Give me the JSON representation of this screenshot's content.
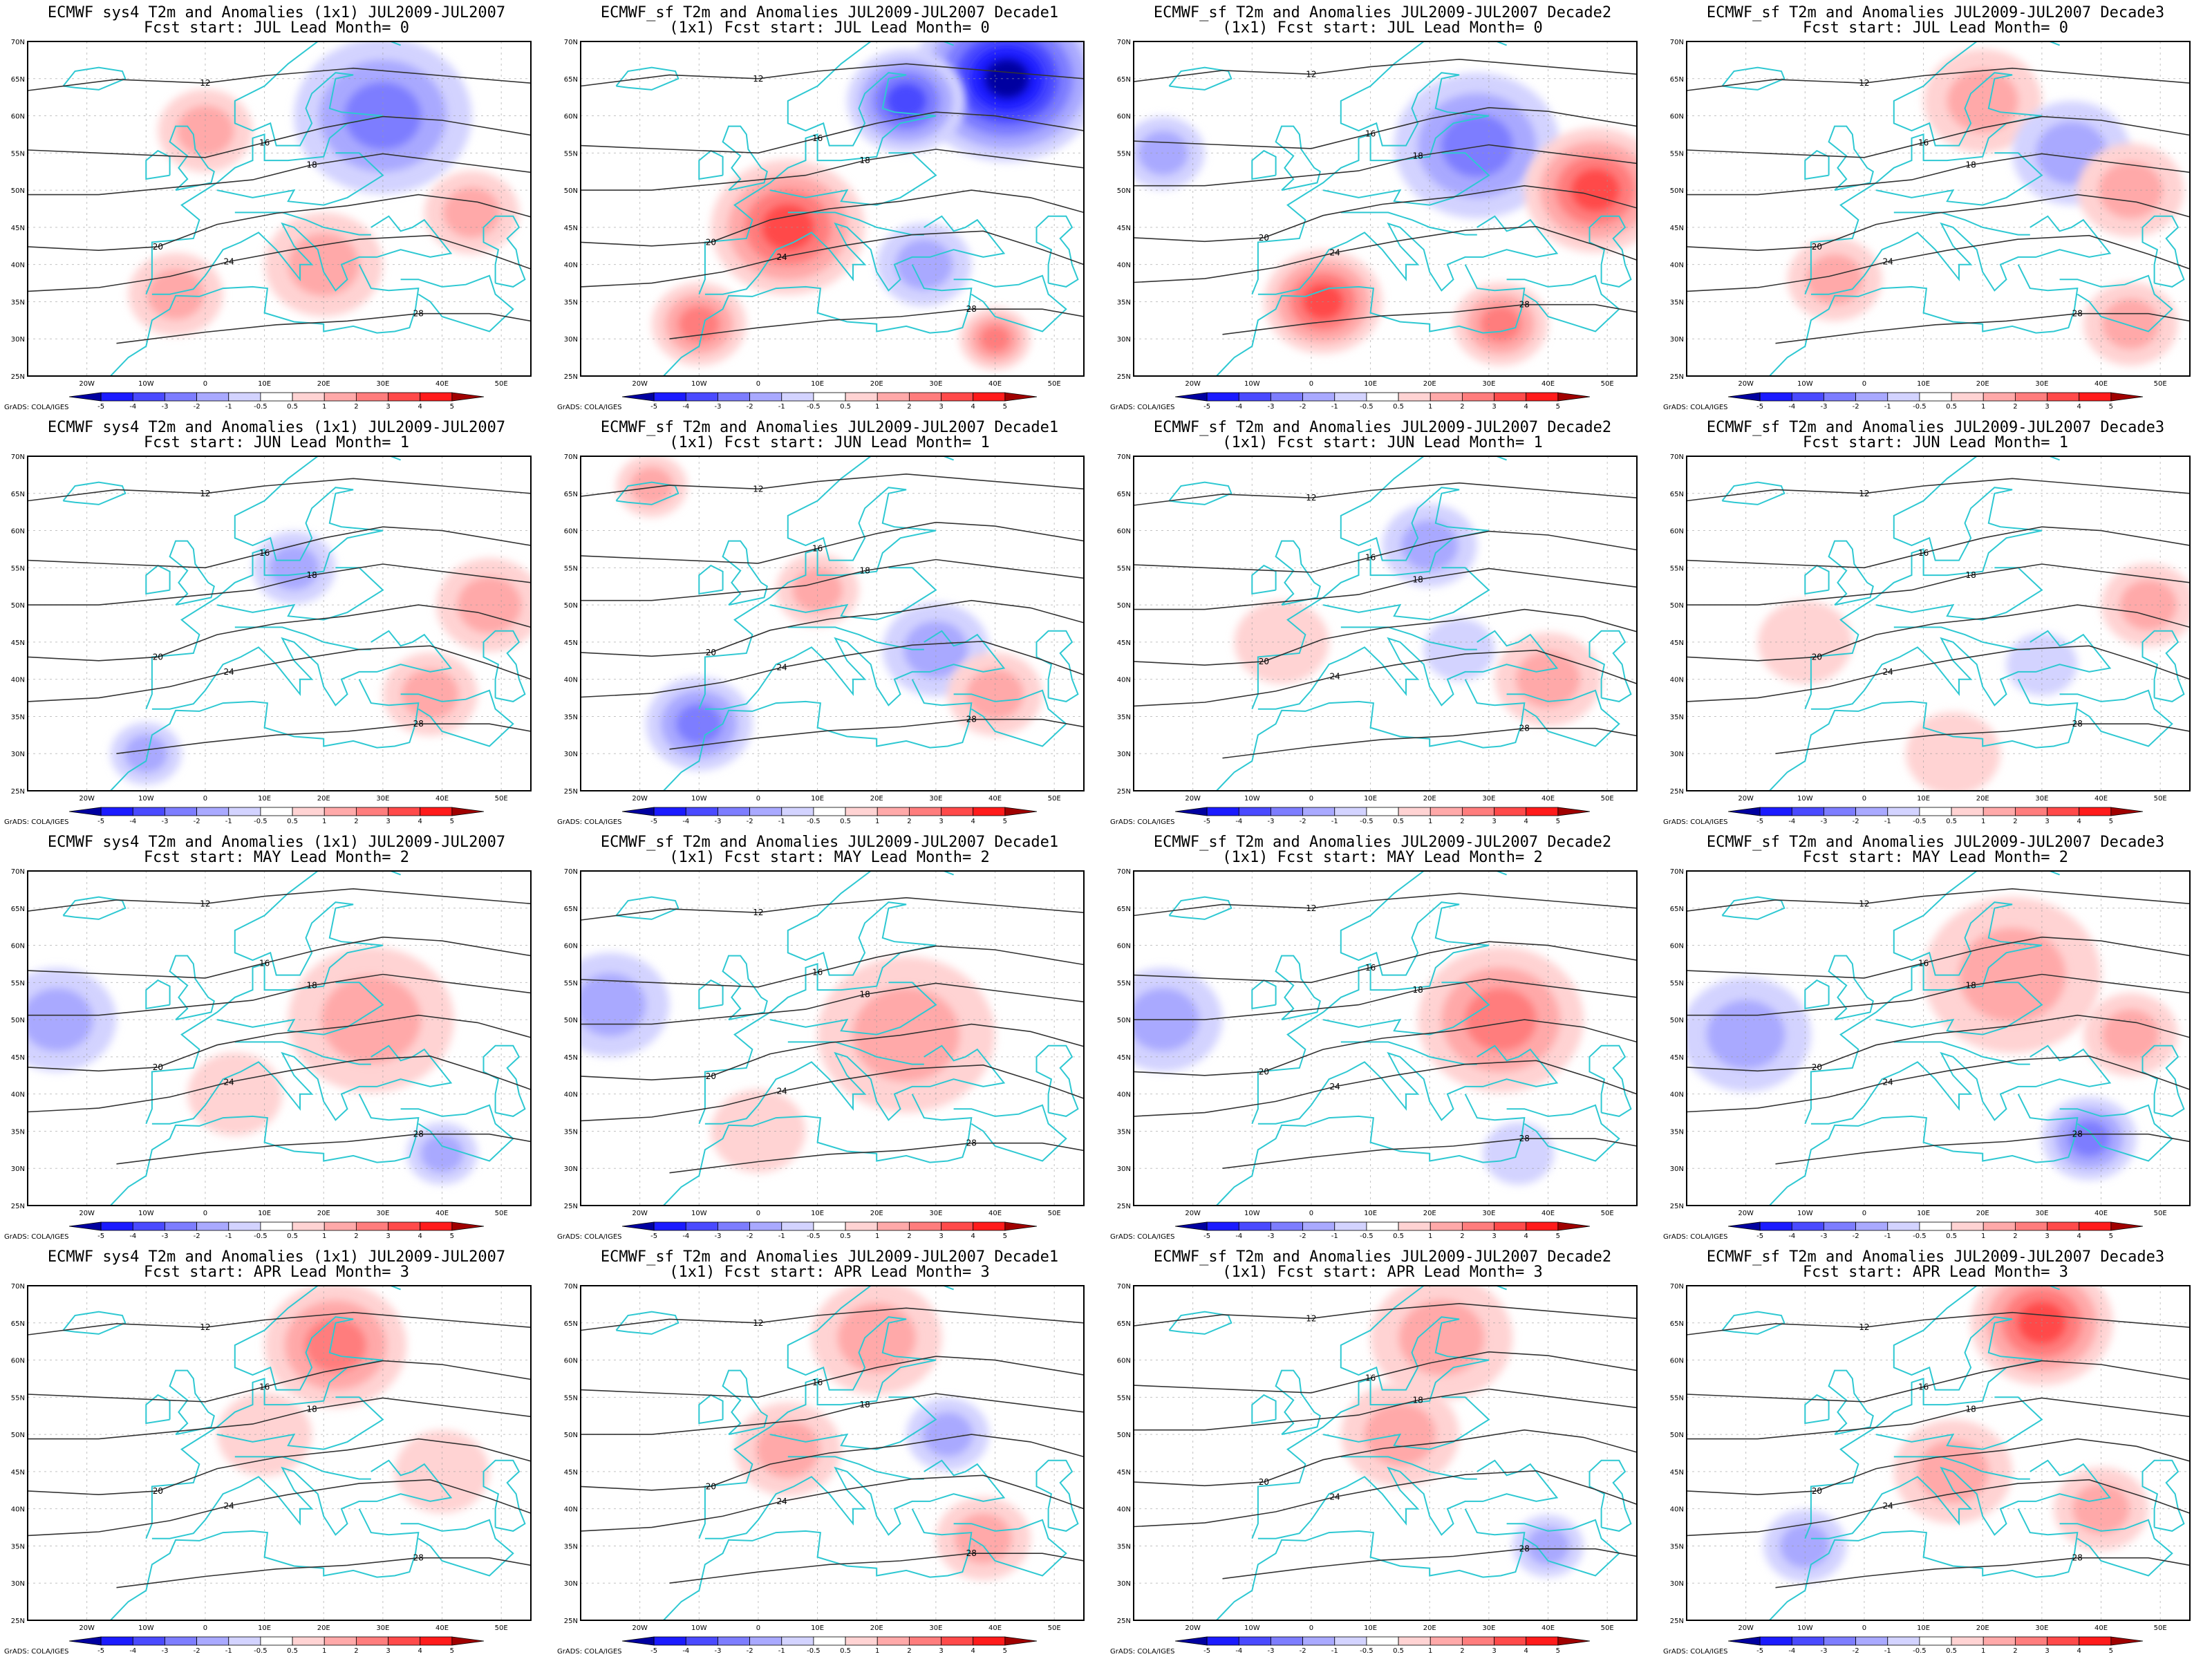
{
  "figure": {
    "credit": "GrADS: COLA/IGES",
    "lat_labels": [
      "25N",
      "30N",
      "35N",
      "40N",
      "45N",
      "50N",
      "55N",
      "60N",
      "65N",
      "70N"
    ],
    "lon_labels": [
      "20W",
      "10W",
      "0",
      "10E",
      "20E",
      "30E",
      "40E",
      "50E"
    ],
    "colorbar_labels": [
      "-5",
      "-4",
      "-3",
      "-2",
      "-1",
      "-0.5",
      "0.5",
      "1",
      "2",
      "3",
      "4",
      "5"
    ],
    "colors": {
      "coast": "#2ec8d2",
      "contour": "#333333",
      "neg": [
        "#0000a0",
        "#1b1bff",
        "#4a4aff",
        "#7d7dff",
        "#a9a9ff",
        "#d3d3ff"
      ],
      "pos": [
        "#ffd3d3",
        "#ffa9a9",
        "#ff7d7d",
        "#ff4a4a",
        "#ff1b1b",
        "#a00000"
      ]
    }
  },
  "panels": [
    {
      "t1": "ECMWF sys4 T2m and Anomalies (1x1) JUL2009-JUL2007",
      "t2": "Fcst start: JUL  Lead Month= 0",
      "anoms": [
        {
          "lon": 30,
          "lat": 60,
          "v": -2.5,
          "r": 15
        },
        {
          "lon": 0,
          "lat": 58,
          "v": 1.3,
          "r": 8
        },
        {
          "lon": 20,
          "lat": 40,
          "v": 1.5,
          "r": 10
        },
        {
          "lon": -5,
          "lat": 36,
          "v": 1.5,
          "r": 8
        },
        {
          "lon": 45,
          "lat": 47,
          "v": 1.5,
          "r": 8
        }
      ]
    },
    {
      "t1": "ECMWF_sf T2m and Anomalies JUL2009-JUL2007 Decade1",
      "t2": "(1x1) Fcst start: JUL  Lead Month= 0",
      "anoms": [
        {
          "lon": 42,
          "lat": 65,
          "v": -5,
          "r": 16
        },
        {
          "lon": 25,
          "lat": 62,
          "v": -3,
          "r": 10
        },
        {
          "lon": 5,
          "lat": 45,
          "v": 3,
          "r": 13
        },
        {
          "lon": -10,
          "lat": 32,
          "v": 2.5,
          "r": 8
        },
        {
          "lon": 40,
          "lat": 30,
          "v": 2.5,
          "r": 6
        },
        {
          "lon": 28,
          "lat": 40,
          "v": -1.5,
          "r": 8
        }
      ]
    },
    {
      "t1": "ECMWF_sf T2m and Anomalies JUL2009-JUL2007 Decade2",
      "t2": "(1x1) Fcst start: JUL  Lead Month= 0",
      "anoms": [
        {
          "lon": 28,
          "lat": 56,
          "v": -2.5,
          "r": 14
        },
        {
          "lon": 48,
          "lat": 50,
          "v": 3,
          "r": 12
        },
        {
          "lon": 2,
          "lat": 35,
          "v": 3,
          "r": 10
        },
        {
          "lon": 32,
          "lat": 32,
          "v": 2,
          "r": 8
        },
        {
          "lon": -25,
          "lat": 55,
          "v": -1.2,
          "r": 7
        }
      ]
    },
    {
      "t1": "ECMWF_sf T2m and Anomalies JUL2009-JUL2007 Decade3",
      "t2": "Fcst start: JUL  Lead Month= 0",
      "anoms": [
        {
          "lon": 20,
          "lat": 62,
          "v": 1.5,
          "r": 10
        },
        {
          "lon": 35,
          "lat": 55,
          "v": -1,
          "r": 10
        },
        {
          "lon": 45,
          "lat": 50,
          "v": 1.5,
          "r": 9
        },
        {
          "lon": -5,
          "lat": 38,
          "v": 1,
          "r": 8
        },
        {
          "lon": 45,
          "lat": 32,
          "v": 1.5,
          "r": 8
        }
      ]
    },
    {
      "t1": "ECMWF sys4 T2m and Anomalies (1x1) JUL2009-JUL2007",
      "t2": "Fcst start: JUN  Lead Month= 1",
      "anoms": [
        {
          "lon": 48,
          "lat": 50,
          "v": 1.3,
          "r": 9
        },
        {
          "lon": 38,
          "lat": 38,
          "v": 1.3,
          "r": 8
        },
        {
          "lon": 15,
          "lat": 55,
          "v": -1,
          "r": 7
        },
        {
          "lon": -10,
          "lat": 30,
          "v": -1,
          "r": 6
        }
      ]
    },
    {
      "t1": "ECMWF_sf T2m and Anomalies JUL2009-JUL2007 Decade1",
      "t2": "(1x1) Fcst start: JUN  Lead Month= 1",
      "anoms": [
        {
          "lon": -10,
          "lat": 34,
          "v": -2,
          "r": 9
        },
        {
          "lon": 30,
          "lat": 44,
          "v": -1.3,
          "r": 9
        },
        {
          "lon": -18,
          "lat": 66,
          "v": 1.5,
          "r": 6
        },
        {
          "lon": 40,
          "lat": 38,
          "v": 1.3,
          "r": 8
        },
        {
          "lon": 10,
          "lat": 52,
          "v": 1,
          "r": 7
        }
      ]
    },
    {
      "t1": "ECMWF_sf T2m and Anomalies JUL2009-JUL2007 Decade2",
      "t2": "(1x1) Fcst start: JUN  Lead Month= 1",
      "anoms": [
        {
          "lon": 20,
          "lat": 58,
          "v": -1,
          "r": 8
        },
        {
          "lon": 40,
          "lat": 40,
          "v": 1.3,
          "r": 9
        },
        {
          "lon": -5,
          "lat": 45,
          "v": 0.8,
          "r": 8
        },
        {
          "lon": 25,
          "lat": 44,
          "v": -0.8,
          "r": 6
        }
      ]
    },
    {
      "t1": "ECMWF_sf T2m and Anomalies JUL2009-JUL2007 Decade3",
      "t2": "Fcst start: JUN  Lead Month= 1",
      "anoms": [
        {
          "lon": 48,
          "lat": 50,
          "v": 1,
          "r": 8
        },
        {
          "lon": -10,
          "lat": 45,
          "v": 0.8,
          "r": 8
        },
        {
          "lon": 30,
          "lat": 42,
          "v": -0.8,
          "r": 6
        },
        {
          "lon": 15,
          "lat": 30,
          "v": 0.6,
          "r": 8
        }
      ]
    },
    {
      "t1": "ECMWF sys4 T2m and Anomalies (1x1) JUL2009-JUL2007",
      "t2": "Fcst start: MAY  Lead Month= 2",
      "anoms": [
        {
          "lon": -25,
          "lat": 50,
          "v": -1.5,
          "r": 10
        },
        {
          "lon": 28,
          "lat": 50,
          "v": 1.5,
          "r": 14
        },
        {
          "lon": 40,
          "lat": 32,
          "v": -1,
          "r": 6
        },
        {
          "lon": 5,
          "lat": 40,
          "v": 0.7,
          "r": 8
        }
      ]
    },
    {
      "t1": "ECMWF_sf T2m and Anomalies JUL2009-JUL2007 Decade1",
      "t2": "(1x1) Fcst start: MAY  Lead Month= 2",
      "anoms": [
        {
          "lon": -25,
          "lat": 52,
          "v": -1.3,
          "r": 10
        },
        {
          "lon": 25,
          "lat": 48,
          "v": 1.5,
          "r": 15
        },
        {
          "lon": 0,
          "lat": 35,
          "v": 0.8,
          "r": 8
        }
      ]
    },
    {
      "t1": "ECMWF_sf T2m and Anomalies JUL2009-JUL2007 Decade2",
      "t2": "(1x1) Fcst start: MAY  Lead Month= 2",
      "anoms": [
        {
          "lon": -25,
          "lat": 50,
          "v": -1.5,
          "r": 10
        },
        {
          "lon": 32,
          "lat": 50,
          "v": 2,
          "r": 14
        },
        {
          "lon": 35,
          "lat": 32,
          "v": -0.8,
          "r": 6
        }
      ]
    },
    {
      "t1": "ECMWF_sf T2m and Anomalies JUL2009-JUL2007 Decade3",
      "t2": "Fcst start: MAY  Lead Month= 2",
      "anoms": [
        {
          "lon": -20,
          "lat": 48,
          "v": -1.5,
          "r": 11
        },
        {
          "lon": 25,
          "lat": 56,
          "v": 1.7,
          "r": 15
        },
        {
          "lon": 38,
          "lat": 34,
          "v": -2.5,
          "r": 8
        },
        {
          "lon": 45,
          "lat": 48,
          "v": 1.5,
          "r": 8
        }
      ]
    },
    {
      "t1": "ECMWF sys4 T2m and Anomalies (1x1) JUL2009-JUL2007",
      "t2": "Fcst start: APR  Lead Month= 3",
      "anoms": [
        {
          "lon": 22,
          "lat": 62,
          "v": 2,
          "r": 12
        },
        {
          "lon": 10,
          "lat": 50,
          "v": 0.8,
          "r": 8
        },
        {
          "lon": 40,
          "lat": 45,
          "v": 0.8,
          "r": 8
        }
      ]
    },
    {
      "t1": "ECMWF_sf T2m and Anomalies JUL2009-JUL2007 Decade1",
      "t2": "(1x1) Fcst start: APR  Lead Month= 3",
      "anoms": [
        {
          "lon": 20,
          "lat": 63,
          "v": 1.5,
          "r": 11
        },
        {
          "lon": 32,
          "lat": 50,
          "v": -1.5,
          "r": 7
        },
        {
          "lon": 5,
          "lat": 48,
          "v": 1.3,
          "r": 9
        },
        {
          "lon": 38,
          "lat": 36,
          "v": 1,
          "r": 8
        }
      ]
    },
    {
      "t1": "ECMWF_sf T2m and Anomalies JUL2009-JUL2007 Decade2",
      "t2": "(1x1) Fcst start: APR  Lead Month= 3",
      "anoms": [
        {
          "lon": 22,
          "lat": 63,
          "v": 1.8,
          "r": 12
        },
        {
          "lon": 15,
          "lat": 50,
          "v": 1,
          "r": 10
        },
        {
          "lon": 40,
          "lat": 35,
          "v": -1,
          "r": 6
        }
      ]
    },
    {
      "t1": "ECMWF_sf T2m and Anomalies JUL2009-JUL2007 Decade3",
      "t2": "Fcst start: APR  Lead Month= 3",
      "anoms": [
        {
          "lon": 30,
          "lat": 65,
          "v": 3,
          "r": 12
        },
        {
          "lon": 15,
          "lat": 45,
          "v": 1,
          "r": 10
        },
        {
          "lon": -10,
          "lat": 35,
          "v": -1.5,
          "r": 7
        },
        {
          "lon": 40,
          "lat": 40,
          "v": 1,
          "r": 8
        }
      ]
    }
  ]
}
